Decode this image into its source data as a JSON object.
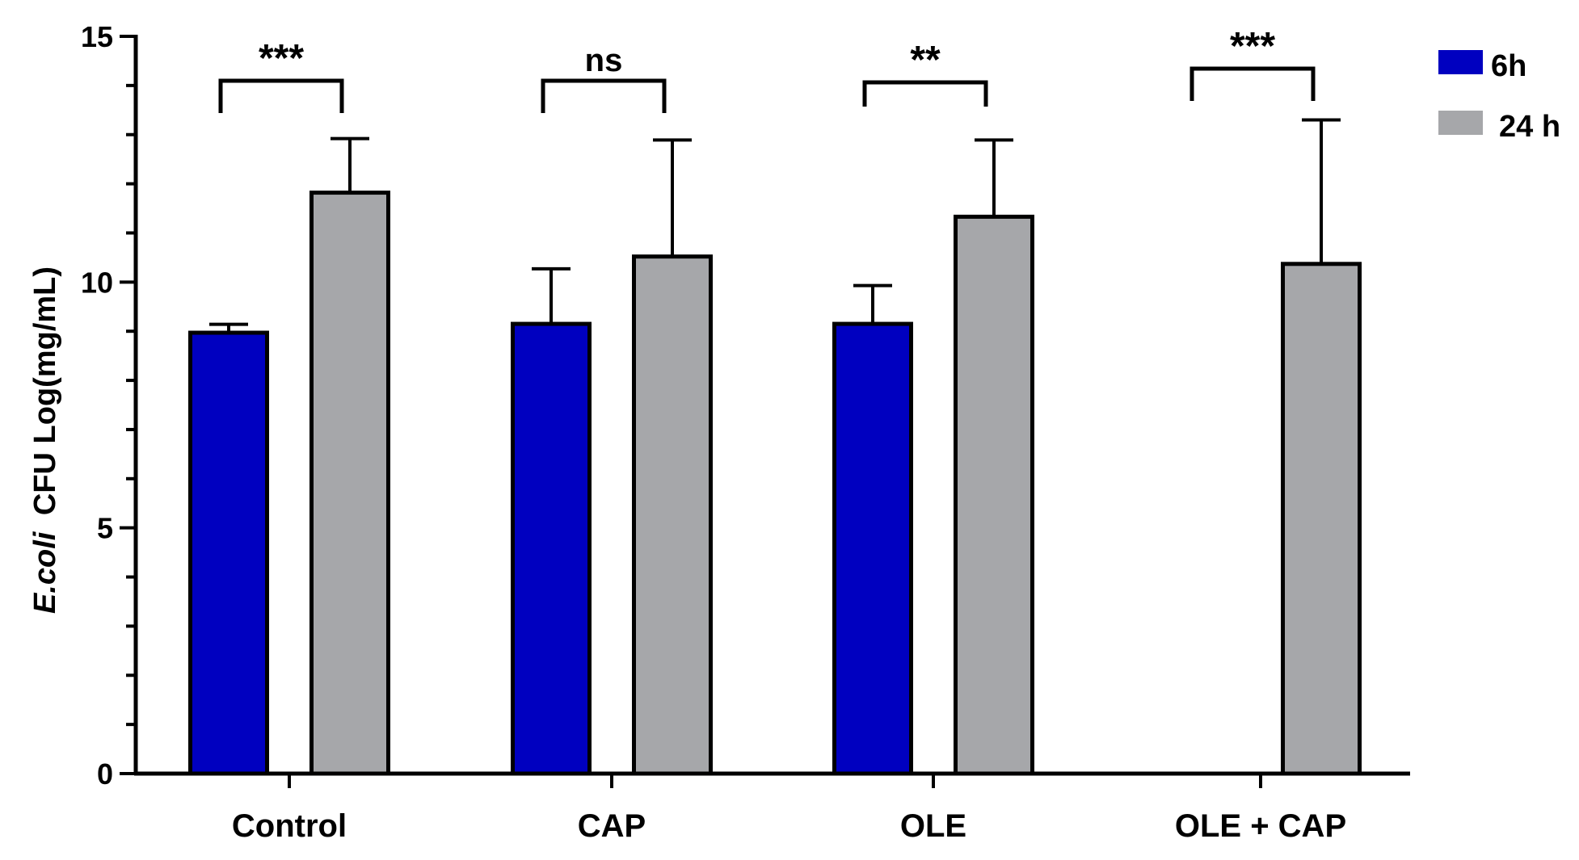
{
  "chart_data": {
    "type": "bar",
    "title": "",
    "xlabel": "",
    "ylabel": "CFU Log(mg/mL)",
    "ylabel_organism": "E.coli",
    "ylim": [
      0,
      15
    ],
    "yticks": [
      "0",
      "5",
      "10",
      "15"
    ],
    "categories": [
      "Control",
      "CAP",
      "OLE",
      "OLE + CAP"
    ],
    "series": [
      {
        "name": "6h",
        "color": "#0000c0",
        "values": [
          8.97,
          9.15,
          9.15,
          null
        ],
        "errors": [
          0.17,
          1.12,
          0.78,
          null
        ]
      },
      {
        "name": "24 h",
        "color": "#a6a7aa",
        "values": [
          11.82,
          10.52,
          11.33,
          10.37
        ],
        "errors": [
          1.1,
          2.37,
          1.56,
          2.93
        ]
      }
    ],
    "significance": [
      "***",
      "ns",
      "**",
      "***"
    ],
    "legend_position": "top-right"
  }
}
